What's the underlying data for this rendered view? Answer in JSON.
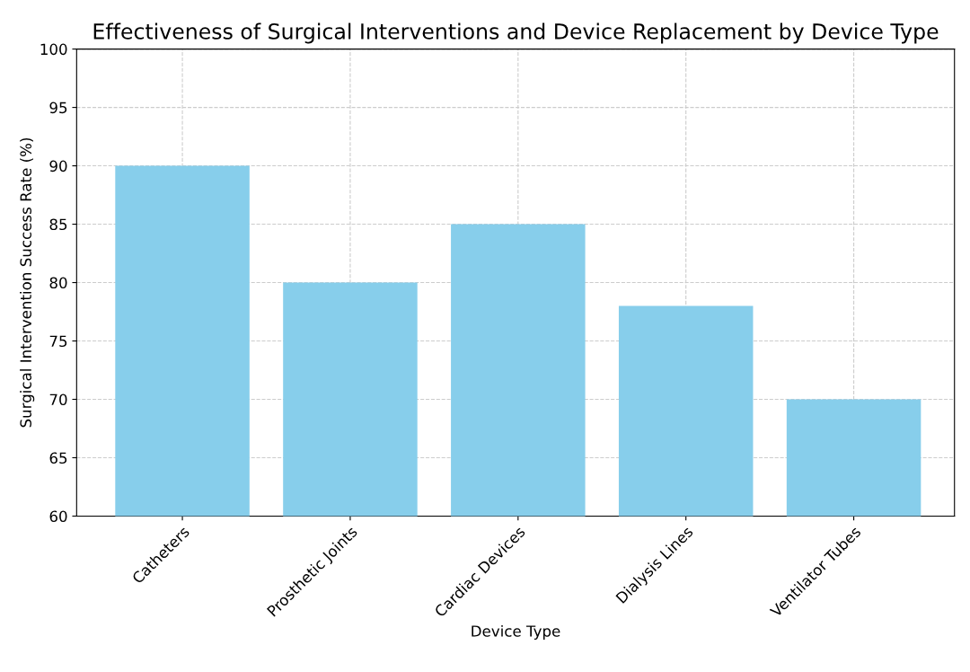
{
  "chart_data": {
    "type": "bar",
    "title": "Effectiveness of Surgical Interventions and Device Replacement by Device Type",
    "xlabel": "Device Type",
    "ylabel": "Surgical Intervention Success Rate (%)",
    "categories": [
      "Catheters",
      "Prosthetic Joints",
      "Cardiac Devices",
      "Dialysis Lines",
      "Ventilator Tubes"
    ],
    "values": [
      90,
      80,
      85,
      78,
      70
    ],
    "color": "#87ceeb",
    "ylim": [
      60,
      100
    ],
    "yticks": [
      60,
      65,
      70,
      75,
      80,
      85,
      90,
      95,
      100
    ],
    "grid": true
  }
}
